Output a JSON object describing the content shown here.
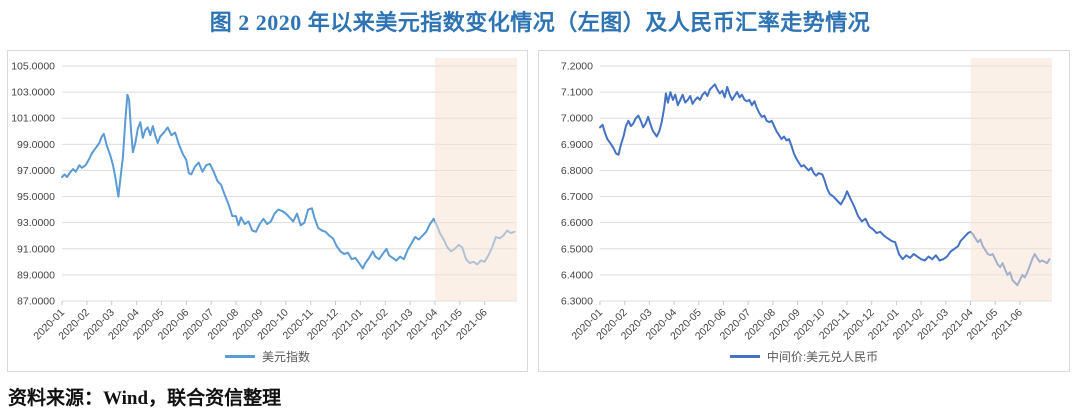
{
  "title": "图 2  2020 年以来美元指数变化情况（左图）及人民币汇率走势情况",
  "source": "资料来源：Wind，联合资信整理",
  "colors": {
    "title_blue": "#2E74B5",
    "grid": "#DEDEDE",
    "axis_tick": "#C9C9C9",
    "tick_text": "#444444",
    "legend_text": "#595959",
    "panel_border": "#D9D9D9",
    "highlight_band": "#F6E3D5"
  },
  "chart_data": [
    {
      "type": "line",
      "name": "usd-index",
      "legend": "美元指数",
      "line_color": "#5B9BD5",
      "x_unit": "months since 2020-01",
      "x_ticks": [
        "2020-01",
        "2020-02",
        "2020-03",
        "2020-04",
        "2020-05",
        "2020-06",
        "2020-07",
        "2020-08",
        "2020-09",
        "2020-10",
        "2020-11",
        "2020-12",
        "2021-01",
        "2021-02",
        "2021-03",
        "2021-04",
        "2021-05",
        "2021-06"
      ],
      "xlim": [
        0,
        18.3
      ],
      "ylim": [
        87,
        105
      ],
      "y_step": 2,
      "y_decimals": 4,
      "grid": true,
      "legend_position": "bottom",
      "highlight_band": {
        "from": 15,
        "to": 18.3,
        "color": "#F6E3D5",
        "opacity": 0.55
      },
      "x": [
        0,
        0.1,
        0.2,
        0.35,
        0.45,
        0.55,
        0.7,
        0.8,
        0.95,
        1.1,
        1.2,
        1.35,
        1.5,
        1.6,
        1.68,
        1.8,
        1.95,
        2.05,
        2.15,
        2.27,
        2.35,
        2.45,
        2.55,
        2.63,
        2.7,
        2.78,
        2.85,
        2.95,
        3.05,
        3.15,
        3.25,
        3.35,
        3.45,
        3.55,
        3.65,
        3.75,
        3.85,
        3.95,
        4.1,
        4.25,
        4.4,
        4.55,
        4.7,
        4.85,
        5.0,
        5.1,
        5.2,
        5.35,
        5.5,
        5.65,
        5.8,
        5.95,
        6.1,
        6.25,
        6.4,
        6.55,
        6.7,
        6.85,
        7.0,
        7.1,
        7.2,
        7.35,
        7.5,
        7.65,
        7.8,
        7.95,
        8.1,
        8.25,
        8.4,
        8.55,
        8.7,
        8.85,
        9.0,
        9.15,
        9.3,
        9.45,
        9.6,
        9.75,
        9.9,
        10.05,
        10.15,
        10.3,
        10.45,
        10.6,
        10.75,
        10.9,
        11.05,
        11.2,
        11.35,
        11.5,
        11.65,
        11.8,
        11.95,
        12.1,
        12.2,
        12.35,
        12.5,
        12.6,
        12.75,
        12.9,
        13.05,
        13.15,
        13.3,
        13.45,
        13.6,
        13.75,
        13.9,
        14.05,
        14.2,
        14.35,
        14.5,
        14.65,
        14.8,
        14.95,
        15.1,
        15.2,
        15.35,
        15.5,
        15.65,
        15.8,
        15.95,
        16.1,
        16.25,
        16.4,
        16.55,
        16.7,
        16.85,
        17.0,
        17.15,
        17.3,
        17.45,
        17.6,
        17.75,
        17.9,
        18.05,
        18.2
      ],
      "values": [
        96.5,
        96.7,
        96.5,
        96.9,
        97.1,
        96.9,
        97.4,
        97.2,
        97.4,
        97.9,
        98.3,
        98.7,
        99.1,
        99.6,
        99.8,
        98.9,
        98.1,
        97.4,
        96.4,
        95.0,
        96.4,
        98.0,
        100.9,
        102.8,
        102.4,
        100.0,
        98.4,
        99.1,
        100.2,
        100.7,
        99.5,
        100.1,
        100.3,
        99.7,
        100.4,
        99.7,
        99.1,
        99.6,
        99.9,
        100.3,
        99.7,
        99.9,
        99.0,
        98.3,
        97.8,
        96.8,
        96.7,
        97.3,
        97.6,
        96.9,
        97.4,
        97.5,
        96.9,
        96.2,
        95.9,
        95.1,
        94.4,
        93.5,
        93.5,
        92.8,
        93.4,
        92.9,
        93.1,
        92.4,
        92.3,
        92.9,
        93.3,
        92.9,
        93.1,
        93.7,
        94.0,
        93.9,
        93.7,
        93.4,
        93.1,
        93.7,
        92.8,
        93.0,
        94.0,
        94.1,
        93.4,
        92.6,
        92.4,
        92.3,
        92.0,
        91.8,
        91.2,
        90.8,
        90.6,
        90.7,
        90.2,
        90.3,
        89.9,
        89.5,
        89.9,
        90.3,
        90.8,
        90.4,
        90.2,
        90.6,
        91.0,
        90.5,
        90.3,
        90.1,
        90.4,
        90.2,
        90.9,
        91.4,
        91.9,
        91.7,
        92.0,
        92.3,
        92.9,
        93.3,
        92.7,
        92.2,
        91.7,
        91.1,
        90.8,
        91.0,
        91.3,
        91.1,
        90.2,
        89.9,
        90.0,
        89.8,
        90.1,
        90.0,
        90.5,
        91.1,
        91.9,
        91.8,
        92.0,
        92.4,
        92.2,
        92.3
      ]
    },
    {
      "type": "line",
      "name": "cny-parity",
      "legend": "中间价:美元兑人民币",
      "line_color": "#4472C4",
      "x_unit": "months since 2020-01",
      "x_ticks": [
        "2020-01",
        "2020-02",
        "2020-03",
        "2020-04",
        "2020-05",
        "2020-06",
        "2020-07",
        "2020-08",
        "2020-09",
        "2020-10",
        "2020-11",
        "2020-12",
        "2021-01",
        "2021-02",
        "2021-03",
        "2021-04",
        "2021-05",
        "2021-06"
      ],
      "xlim": [
        0,
        18.3
      ],
      "ylim": [
        6.3,
        7.2
      ],
      "y_step": 0.1,
      "y_decimals": 4,
      "grid": true,
      "legend_position": "bottom",
      "highlight_band": {
        "from": 15,
        "to": 18.3,
        "color": "#F6E3D5",
        "opacity": 0.55
      },
      "x": [
        0,
        0.1,
        0.2,
        0.3,
        0.45,
        0.55,
        0.65,
        0.75,
        0.85,
        0.95,
        1.05,
        1.15,
        1.25,
        1.35,
        1.45,
        1.55,
        1.65,
        1.75,
        1.85,
        1.95,
        2.05,
        2.15,
        2.3,
        2.4,
        2.5,
        2.6,
        2.67,
        2.75,
        2.85,
        2.95,
        3.05,
        3.15,
        3.25,
        3.35,
        3.45,
        3.55,
        3.65,
        3.75,
        3.85,
        3.95,
        4.05,
        4.15,
        4.25,
        4.35,
        4.45,
        4.55,
        4.65,
        4.75,
        4.85,
        4.95,
        5.05,
        5.15,
        5.25,
        5.35,
        5.45,
        5.55,
        5.65,
        5.75,
        5.85,
        5.95,
        6.05,
        6.15,
        6.25,
        6.35,
        6.45,
        6.55,
        6.65,
        6.75,
        6.85,
        6.95,
        7.05,
        7.15,
        7.25,
        7.35,
        7.45,
        7.55,
        7.65,
        7.75,
        7.85,
        7.95,
        8.05,
        8.15,
        8.25,
        8.35,
        8.45,
        8.55,
        8.65,
        8.75,
        8.85,
        9.0,
        9.1,
        9.2,
        9.3,
        9.45,
        9.6,
        9.75,
        9.9,
        10.0,
        10.15,
        10.3,
        10.45,
        10.6,
        10.75,
        10.9,
        11.05,
        11.2,
        11.35,
        11.5,
        11.65,
        11.8,
        11.95,
        12.1,
        12.25,
        12.4,
        12.55,
        12.7,
        12.85,
        13.0,
        13.15,
        13.3,
        13.45,
        13.6,
        13.75,
        13.9,
        14.05,
        14.2,
        14.35,
        14.5,
        14.6,
        14.7,
        14.8,
        14.9,
        15.0,
        15.1,
        15.2,
        15.3,
        15.4,
        15.5,
        15.6,
        15.7,
        15.8,
        15.9,
        16.0,
        16.1,
        16.2,
        16.3,
        16.4,
        16.5,
        16.6,
        16.7,
        16.8,
        16.9,
        17.0,
        17.1,
        17.2,
        17.3,
        17.4,
        17.5,
        17.6,
        17.7,
        17.8,
        17.9,
        18.0,
        18.1,
        18.2
      ],
      "values": [
        6.965,
        6.975,
        6.945,
        6.92,
        6.9,
        6.885,
        6.865,
        6.86,
        6.9,
        6.93,
        6.97,
        6.99,
        6.97,
        6.98,
        7.0,
        7.01,
        6.99,
        6.965,
        6.98,
        7.005,
        6.975,
        6.95,
        6.93,
        6.95,
        6.985,
        7.04,
        7.095,
        7.06,
        7.1,
        7.07,
        7.09,
        7.05,
        7.07,
        7.09,
        7.06,
        7.07,
        7.085,
        7.055,
        7.07,
        7.08,
        7.07,
        7.09,
        7.1,
        7.085,
        7.11,
        7.12,
        7.13,
        7.11,
        7.095,
        7.105,
        7.08,
        7.12,
        7.09,
        7.07,
        7.085,
        7.1,
        7.08,
        7.09,
        7.07,
        7.065,
        7.07,
        7.05,
        7.065,
        7.04,
        7.02,
        7.005,
        7.01,
        6.99,
        6.985,
        6.99,
        6.97,
        6.95,
        6.935,
        6.92,
        6.93,
        6.915,
        6.92,
        6.895,
        6.865,
        6.845,
        6.83,
        6.815,
        6.82,
        6.81,
        6.8,
        6.81,
        6.79,
        6.78,
        6.79,
        6.785,
        6.76,
        6.73,
        6.71,
        6.7,
        6.685,
        6.67,
        6.695,
        6.72,
        6.69,
        6.66,
        6.625,
        6.605,
        6.615,
        6.585,
        6.575,
        6.56,
        6.565,
        6.55,
        6.54,
        6.53,
        6.525,
        6.48,
        6.46,
        6.475,
        6.465,
        6.48,
        6.47,
        6.46,
        6.455,
        6.47,
        6.46,
        6.475,
        6.455,
        6.46,
        6.47,
        6.49,
        6.5,
        6.51,
        6.53,
        6.54,
        6.55,
        6.56,
        6.565,
        6.555,
        6.54,
        6.525,
        6.535,
        6.51,
        6.495,
        6.48,
        6.475,
        6.48,
        6.46,
        6.44,
        6.43,
        6.445,
        6.42,
        6.4,
        6.41,
        6.38,
        6.37,
        6.36,
        6.38,
        6.4,
        6.39,
        6.41,
        6.435,
        6.46,
        6.48,
        6.465,
        6.45,
        6.455,
        6.45,
        6.445,
        6.46
      ]
    }
  ]
}
